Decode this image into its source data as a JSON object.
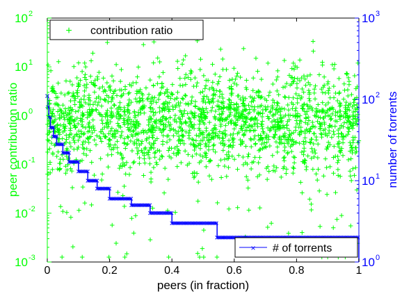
{
  "colors": {
    "left_axis": "#00ff00",
    "right_axis": "#0000ff",
    "bottom_axis": "#000000",
    "scatter": "#00ff00",
    "step_line": "#0000ff",
    "background": "#ffffff"
  },
  "chart_data": {
    "type": "scatter",
    "xlabel": "peers (in fraction)",
    "ylabel_left": "peer contribution ratio",
    "ylabel_right": "number of torrents",
    "xlim": [
      0,
      1
    ],
    "ylim_left": [
      0.001,
      100
    ],
    "ylim_right": [
      1,
      1000
    ],
    "yscale_left": "log",
    "yscale_right": "log",
    "grid": false,
    "x_ticks": [
      "0",
      "0.2",
      "0.4",
      "0.6",
      "0.8",
      "1"
    ],
    "y_left_ticks": [
      {
        "base": "10",
        "exp": "-3"
      },
      {
        "base": "10",
        "exp": "-2"
      },
      {
        "base": "10",
        "exp": "-1"
      },
      {
        "base": "10",
        "exp": "0"
      },
      {
        "base": "10",
        "exp": "1"
      },
      {
        "base": "10",
        "exp": "2"
      }
    ],
    "y_right_ticks": [
      {
        "base": "10",
        "exp": "0"
      },
      {
        "base": "10",
        "exp": "1"
      },
      {
        "base": "10",
        "exp": "2"
      },
      {
        "base": "10",
        "exp": "3"
      }
    ],
    "legends": [
      {
        "label": "contribution ratio",
        "marker": "+",
        "color": "#00ff00",
        "placement": "top-left"
      },
      {
        "label": "# of torrents",
        "marker": "x",
        "color": "#0000ff",
        "placement": "bottom-right"
      }
    ],
    "series": [
      {
        "name": "contribution ratio",
        "axis": "left",
        "marker": "+",
        "description_points": "approximately 2000 peers, ratios spread roughly log-normally around 1 (mostly 0.1 to 10)",
        "points": []
      },
      {
        "name": "# of torrents",
        "axis": "right",
        "marker": "x",
        "line": "step",
        "x": [
          0,
          0.002,
          0.005,
          0.01,
          0.02,
          0.03,
          0.05,
          0.07,
          0.1,
          0.13,
          0.16,
          0.2,
          0.27,
          0.33,
          0.4,
          0.545,
          1.0
        ],
        "y": [
          110,
          80,
          60,
          45,
          35,
          28,
          22,
          17,
          13,
          10,
          8,
          6,
          5,
          4,
          3,
          2,
          1
        ]
      }
    ]
  }
}
